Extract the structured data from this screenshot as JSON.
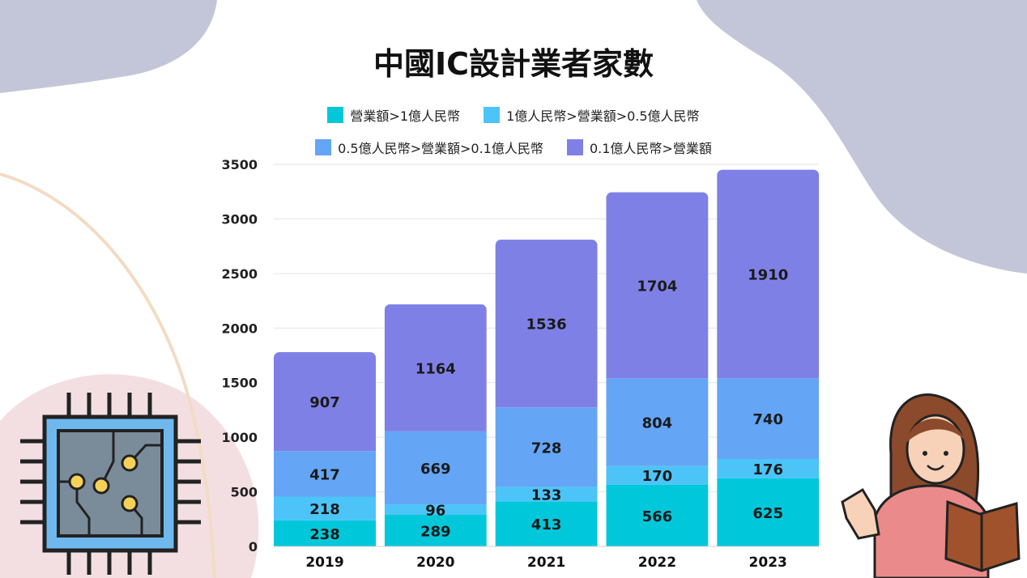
{
  "chart_data": {
    "type": "bar",
    "stacked": true,
    "title": "中國IC設計業者家數",
    "categories": [
      "2019",
      "2020",
      "2021",
      "2022",
      "2023"
    ],
    "series": [
      {
        "name": "營業額>1億人民幣",
        "color": "#00C8DA",
        "values": [
          238,
          289,
          413,
          566,
          625
        ]
      },
      {
        "name": "1億人民幣>營業額>0.5億人民幣",
        "color": "#4CC4F8",
        "values": [
          218,
          96,
          133,
          170,
          176
        ]
      },
      {
        "name": "0.5億人民幣>營業額>0.1億人民幣",
        "color": "#64A5F5",
        "values": [
          417,
          669,
          728,
          804,
          740
        ]
      },
      {
        "name": "0.1億人民幣>營業額",
        "color": "#7F80E6",
        "values": [
          907,
          1164,
          1536,
          1704,
          1910
        ]
      }
    ],
    "yticks": [
      0,
      500,
      1000,
      1500,
      2000,
      2500,
      3000,
      3500
    ],
    "ylim": [
      0,
      3500
    ],
    "grid": true,
    "data_labels": true,
    "legend_placement": "top"
  }
}
